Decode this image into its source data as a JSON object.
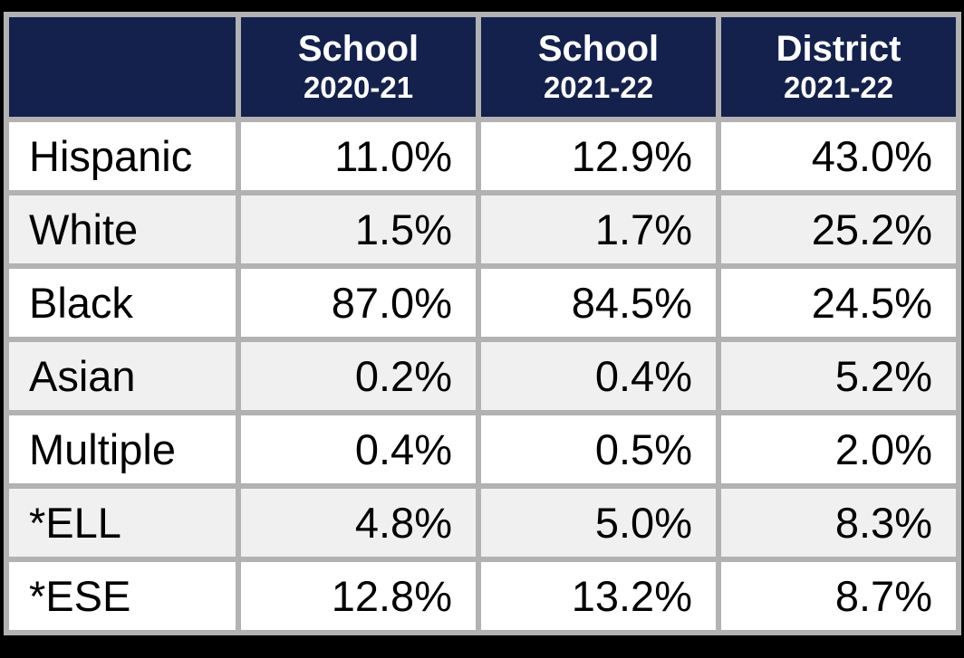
{
  "table": {
    "columns": [
      {
        "line1": "",
        "line2": ""
      },
      {
        "line1": "School",
        "line2": "2020-21"
      },
      {
        "line1": "School",
        "line2": "2021-22"
      },
      {
        "line1": "District",
        "line2": "2021-22"
      }
    ],
    "rows": [
      {
        "label": "Hispanic",
        "values": [
          "11.0%",
          "12.9%",
          "43.0%"
        ]
      },
      {
        "label": "White",
        "values": [
          "1.5%",
          "1.7%",
          "25.2%"
        ]
      },
      {
        "label": "Black",
        "values": [
          "87.0%",
          "84.5%",
          "24.5%"
        ]
      },
      {
        "label": "Asian",
        "values": [
          "0.2%",
          "0.4%",
          "5.2%"
        ]
      },
      {
        "label": "Multiple",
        "values": [
          "0.4%",
          "0.5%",
          "2.0%"
        ]
      },
      {
        "label": "*ELL",
        "values": [
          "4.8%",
          "5.0%",
          "8.3%"
        ]
      },
      {
        "label": "*ESE",
        "values": [
          "12.8%",
          "13.2%",
          "8.7%"
        ]
      }
    ]
  },
  "colors": {
    "header_bg": "#14214d",
    "header_text": "#ffffff",
    "border_gray": "#b2b2b2",
    "row_white": "#ffffff",
    "row_alt": "#f0f0f0",
    "body_text": "#000000",
    "frame_black": "#000000"
  },
  "chart_data": {
    "type": "table",
    "title": "",
    "categories": [
      "Hispanic",
      "White",
      "Black",
      "Asian",
      "Multiple",
      "*ELL",
      "*ESE"
    ],
    "series": [
      {
        "name": "School 2020-21",
        "values": [
          11.0,
          1.5,
          87.0,
          0.2,
          0.4,
          4.8,
          12.8
        ]
      },
      {
        "name": "School 2021-22",
        "values": [
          12.9,
          1.7,
          84.5,
          0.4,
          0.5,
          5.0,
          13.2
        ]
      },
      {
        "name": "District 2021-22",
        "values": [
          43.0,
          25.2,
          24.5,
          5.2,
          2.0,
          8.3,
          8.7
        ]
      }
    ],
    "unit": "%",
    "layout_hints": {
      "header_style": "two-line bold white on navy",
      "row_striping": "white / light-gray alternating starting white",
      "value_alignment": "right",
      "label_alignment": "left"
    }
  }
}
